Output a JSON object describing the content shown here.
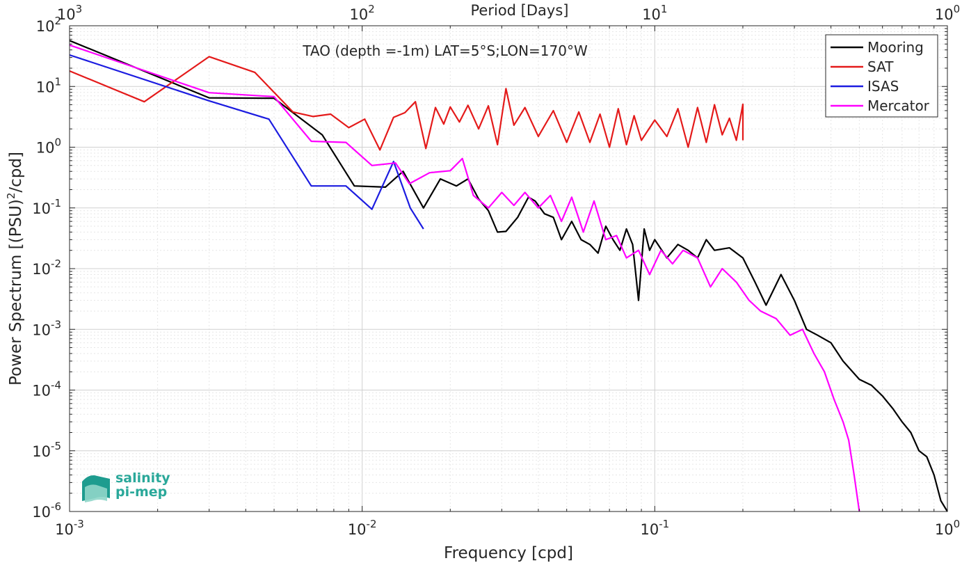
{
  "chart_data": {
    "type": "line",
    "title": "TAO (depth =-1m) LAT=5°S;LON=170°W",
    "xlabel": "Frequency [cpd]",
    "ylabel_parts": [
      "Power Spectrum [(PSU)",
      "2",
      "/cpd]"
    ],
    "top_xlabel": "Period [Days]",
    "x_scale": "log",
    "y_scale": "log",
    "xlim": [
      0.001,
      1
    ],
    "ylim": [
      1e-06,
      100
    ],
    "grid": true,
    "legend_position": "top-right",
    "x_ticks": [
      {
        "value": 0.001,
        "base": "10",
        "exp": "-3"
      },
      {
        "value": 0.01,
        "base": "10",
        "exp": "-2"
      },
      {
        "value": 0.1,
        "base": "10",
        "exp": "-1"
      },
      {
        "value": 1,
        "base": "10",
        "exp": "0"
      }
    ],
    "top_ticks": [
      {
        "value": 0.001,
        "base": "10",
        "exp": "3"
      },
      {
        "value": 0.01,
        "base": "10",
        "exp": "2"
      },
      {
        "value": 0.1,
        "base": "10",
        "exp": "1"
      },
      {
        "value": 1,
        "base": "10",
        "exp": "0"
      }
    ],
    "y_ticks": [
      {
        "value": 100,
        "base": "10",
        "exp": "2"
      },
      {
        "value": 10,
        "base": "10",
        "exp": "1"
      },
      {
        "value": 1,
        "base": "10",
        "exp": "0"
      },
      {
        "value": 0.1,
        "base": "10",
        "exp": "-1"
      },
      {
        "value": 0.01,
        "base": "10",
        "exp": "-2"
      },
      {
        "value": 0.001,
        "base": "10",
        "exp": "-3"
      },
      {
        "value": 0.0001,
        "base": "10",
        "exp": "-4"
      },
      {
        "value": 1e-05,
        "base": "10",
        "exp": "-5"
      },
      {
        "value": 1e-06,
        "base": "10",
        "exp": "-6"
      }
    ],
    "series": [
      {
        "name": "Mooring",
        "color": "#000000",
        "points": [
          [
            0.001,
            57
          ],
          [
            0.003,
            6.5
          ],
          [
            0.005,
            6.4
          ],
          [
            0.0073,
            1.6
          ],
          [
            0.0094,
            0.23
          ],
          [
            0.012,
            0.22
          ],
          [
            0.0138,
            0.4
          ],
          [
            0.0162,
            0.1
          ],
          [
            0.0185,
            0.3
          ],
          [
            0.021,
            0.23
          ],
          [
            0.023,
            0.3
          ],
          [
            0.025,
            0.14
          ],
          [
            0.027,
            0.09
          ],
          [
            0.029,
            0.04
          ],
          [
            0.031,
            0.041
          ],
          [
            0.034,
            0.07
          ],
          [
            0.037,
            0.15
          ],
          [
            0.039,
            0.13
          ],
          [
            0.042,
            0.08
          ],
          [
            0.045,
            0.07
          ],
          [
            0.048,
            0.03
          ],
          [
            0.052,
            0.06
          ],
          [
            0.056,
            0.03
          ],
          [
            0.06,
            0.025
          ],
          [
            0.064,
            0.018
          ],
          [
            0.068,
            0.05
          ],
          [
            0.072,
            0.03
          ],
          [
            0.076,
            0.02
          ],
          [
            0.08,
            0.045
          ],
          [
            0.084,
            0.025
          ],
          [
            0.088,
            0.003
          ],
          [
            0.092,
            0.045
          ],
          [
            0.096,
            0.02
          ],
          [
            0.1,
            0.03
          ],
          [
            0.11,
            0.015
          ],
          [
            0.12,
            0.025
          ],
          [
            0.13,
            0.02
          ],
          [
            0.14,
            0.015
          ],
          [
            0.15,
            0.03
          ],
          [
            0.16,
            0.02
          ],
          [
            0.18,
            0.022
          ],
          [
            0.2,
            0.015
          ],
          [
            0.22,
            0.006
          ],
          [
            0.24,
            0.0025
          ],
          [
            0.27,
            0.008
          ],
          [
            0.3,
            0.003
          ],
          [
            0.33,
            0.001
          ],
          [
            0.36,
            0.0008
          ],
          [
            0.4,
            0.0006
          ],
          [
            0.44,
            0.0003
          ],
          [
            0.5,
            0.00015
          ],
          [
            0.55,
            0.00012
          ],
          [
            0.6,
            8e-05
          ],
          [
            0.65,
            5e-05
          ],
          [
            0.7,
            3e-05
          ],
          [
            0.75,
            2e-05
          ],
          [
            0.8,
            1e-05
          ],
          [
            0.85,
            8e-06
          ],
          [
            0.9,
            4e-06
          ],
          [
            0.95,
            1.5e-06
          ],
          [
            1.0,
            1e-06
          ]
        ]
      },
      {
        "name": "SAT",
        "color": "#e41a1a",
        "points": [
          [
            0.001,
            18
          ],
          [
            0.0018,
            5.6
          ],
          [
            0.003,
            31
          ],
          [
            0.0043,
            17
          ],
          [
            0.0058,
            3.8
          ],
          [
            0.0068,
            3.2
          ],
          [
            0.0078,
            3.5
          ],
          [
            0.009,
            2.1
          ],
          [
            0.0102,
            2.9
          ],
          [
            0.0115,
            0.9
          ],
          [
            0.0128,
            3.1
          ],
          [
            0.014,
            3.7
          ],
          [
            0.0152,
            5.6
          ],
          [
            0.0165,
            0.95
          ],
          [
            0.0178,
            4.5
          ],
          [
            0.019,
            2.4
          ],
          [
            0.02,
            4.6
          ],
          [
            0.0215,
            2.6
          ],
          [
            0.023,
            4.9
          ],
          [
            0.025,
            2.0
          ],
          [
            0.027,
            4.8
          ],
          [
            0.029,
            1.1
          ],
          [
            0.031,
            9.2
          ],
          [
            0.033,
            2.3
          ],
          [
            0.036,
            4.5
          ],
          [
            0.04,
            1.5
          ],
          [
            0.045,
            4.0
          ],
          [
            0.05,
            1.2
          ],
          [
            0.055,
            3.8
          ],
          [
            0.06,
            1.2
          ],
          [
            0.065,
            3.5
          ],
          [
            0.07,
            1.0
          ],
          [
            0.075,
            4.3
          ],
          [
            0.08,
            1.1
          ],
          [
            0.085,
            3.3
          ],
          [
            0.09,
            1.3
          ],
          [
            0.1,
            2.8
          ],
          [
            0.11,
            1.5
          ],
          [
            0.12,
            4.3
          ],
          [
            0.13,
            1.0
          ],
          [
            0.14,
            4.5
          ],
          [
            0.15,
            1.2
          ],
          [
            0.16,
            5.0
          ],
          [
            0.17,
            1.6
          ],
          [
            0.18,
            3.0
          ],
          [
            0.19,
            1.3
          ],
          [
            0.2,
            5.1
          ],
          [
            0.2,
            1.3
          ]
        ]
      },
      {
        "name": "ISAS",
        "color": "#1c1ce0",
        "points": [
          [
            0.001,
            33
          ],
          [
            0.003,
            5.8
          ],
          [
            0.0048,
            2.9
          ],
          [
            0.0067,
            0.23
          ],
          [
            0.0088,
            0.23
          ],
          [
            0.0108,
            0.095
          ],
          [
            0.0128,
            0.58
          ],
          [
            0.0146,
            0.1
          ],
          [
            0.0162,
            0.045
          ]
        ]
      },
      {
        "name": "Mercator",
        "color": "#ff00ff",
        "points": [
          [
            0.001,
            48
          ],
          [
            0.003,
            7.9
          ],
          [
            0.005,
            6.8
          ],
          [
            0.0067,
            1.25
          ],
          [
            0.0088,
            1.2
          ],
          [
            0.0108,
            0.5
          ],
          [
            0.013,
            0.55
          ],
          [
            0.0145,
            0.25
          ],
          [
            0.017,
            0.38
          ],
          [
            0.02,
            0.41
          ],
          [
            0.022,
            0.65
          ],
          [
            0.024,
            0.16
          ],
          [
            0.027,
            0.1
          ],
          [
            0.03,
            0.18
          ],
          [
            0.033,
            0.11
          ],
          [
            0.036,
            0.18
          ],
          [
            0.04,
            0.1
          ],
          [
            0.044,
            0.16
          ],
          [
            0.048,
            0.06
          ],
          [
            0.052,
            0.15
          ],
          [
            0.057,
            0.04
          ],
          [
            0.062,
            0.13
          ],
          [
            0.068,
            0.03
          ],
          [
            0.074,
            0.035
          ],
          [
            0.08,
            0.015
          ],
          [
            0.088,
            0.02
          ],
          [
            0.096,
            0.008
          ],
          [
            0.105,
            0.02
          ],
          [
            0.115,
            0.012
          ],
          [
            0.125,
            0.02
          ],
          [
            0.14,
            0.015
          ],
          [
            0.155,
            0.005
          ],
          [
            0.17,
            0.01
          ],
          [
            0.19,
            0.006
          ],
          [
            0.21,
            0.003
          ],
          [
            0.23,
            0.002
          ],
          [
            0.26,
            0.0015
          ],
          [
            0.29,
            0.0008
          ],
          [
            0.32,
            0.001
          ],
          [
            0.35,
            0.0004
          ],
          [
            0.38,
            0.0002
          ],
          [
            0.41,
            7e-05
          ],
          [
            0.44,
            3e-05
          ],
          [
            0.46,
            1.5e-05
          ],
          [
            0.48,
            4e-06
          ],
          [
            0.5,
            1e-06
          ]
        ]
      }
    ]
  },
  "logo": {
    "line1": "salinity",
    "line2": "pi-mep",
    "color": "#2aa89a"
  }
}
